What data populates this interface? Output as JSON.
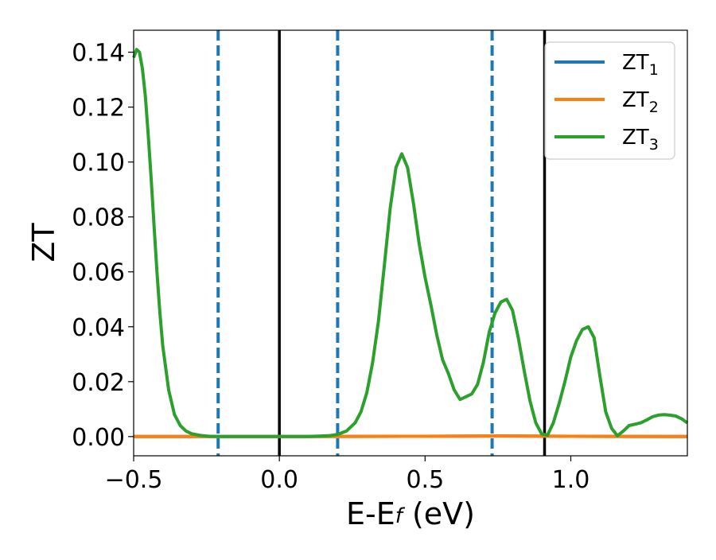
{
  "chart_data": {
    "type": "line",
    "title": "",
    "xlabel": {
      "main": "E-E",
      "sub": "f",
      "suffix": " (eV)"
    },
    "ylabel": "ZT",
    "xlim": [
      -0.5,
      1.4
    ],
    "ylim": [
      -0.007,
      0.148
    ],
    "x_ticks": [
      -0.5,
      0.0,
      0.5,
      1.0
    ],
    "x_tick_labels": [
      "−0.5",
      "0.0",
      "0.5",
      "1.0"
    ],
    "y_ticks": [
      0.0,
      0.02,
      0.04,
      0.06,
      0.08,
      0.1,
      0.12,
      0.14
    ],
    "y_tick_labels": [
      "0.00",
      "0.02",
      "0.04",
      "0.06",
      "0.08",
      "0.10",
      "0.12",
      "0.14"
    ],
    "grid": false,
    "legend_position": "top-right",
    "legend": [
      {
        "base": "ZT",
        "sub": "1",
        "color": "#1f77b4"
      },
      {
        "base": "ZT",
        "sub": "2",
        "color": "#ff7f0e"
      },
      {
        "base": "ZT",
        "sub": "3",
        "color": "#2ca02c"
      }
    ],
    "vlines": [
      {
        "x": -0.21,
        "style": "dashed",
        "color": "#1f77b4"
      },
      {
        "x": 0.0,
        "style": "solid",
        "color": "#000000"
      },
      {
        "x": 0.2,
        "style": "dashed",
        "color": "#1f77b4"
      },
      {
        "x": 0.73,
        "style": "dashed",
        "color": "#1f77b4"
      },
      {
        "x": 0.91,
        "style": "solid",
        "color": "#000000"
      }
    ],
    "series": [
      {
        "name": "ZT1",
        "color": "#1f77b4",
        "x": [
          -0.5,
          0.0,
          0.5,
          0.75,
          1.0,
          1.4
        ],
        "y": [
          0.0,
          0.0,
          0.0001,
          0.0002,
          0.0001,
          0.0
        ]
      },
      {
        "name": "ZT2",
        "color": "#ff7f0e",
        "x": [
          -0.5,
          0.0,
          0.5,
          0.75,
          1.0,
          1.4
        ],
        "y": [
          0.0,
          0.0,
          0.0001,
          0.0002,
          0.0001,
          0.0
        ]
      },
      {
        "name": "ZT3",
        "color": "#2ca02c",
        "x": [
          -0.5,
          -0.49,
          -0.48,
          -0.47,
          -0.46,
          -0.45,
          -0.44,
          -0.43,
          -0.42,
          -0.41,
          -0.4,
          -0.38,
          -0.36,
          -0.34,
          -0.32,
          -0.3,
          -0.27,
          -0.24,
          -0.2,
          -0.1,
          0.0,
          0.1,
          0.17,
          0.2,
          0.23,
          0.26,
          0.28,
          0.3,
          0.32,
          0.34,
          0.36,
          0.38,
          0.4,
          0.42,
          0.44,
          0.46,
          0.48,
          0.5,
          0.52,
          0.54,
          0.56,
          0.58,
          0.6,
          0.62,
          0.64,
          0.66,
          0.68,
          0.7,
          0.72,
          0.74,
          0.76,
          0.78,
          0.8,
          0.82,
          0.84,
          0.86,
          0.88,
          0.9,
          0.92,
          0.94,
          0.96,
          0.98,
          1.0,
          1.02,
          1.04,
          1.06,
          1.08,
          1.1,
          1.12,
          1.14,
          1.16,
          1.18,
          1.2,
          1.22,
          1.24,
          1.26,
          1.28,
          1.3,
          1.32,
          1.34,
          1.36,
          1.38,
          1.4
        ],
        "y": [
          0.138,
          0.141,
          0.14,
          0.134,
          0.124,
          0.11,
          0.094,
          0.077,
          0.06,
          0.045,
          0.033,
          0.017,
          0.008,
          0.004,
          0.002,
          0.001,
          0.0004,
          0.0001,
          0.0,
          0.0,
          0.0,
          0.0,
          0.0003,
          0.0008,
          0.002,
          0.005,
          0.009,
          0.016,
          0.027,
          0.042,
          0.062,
          0.083,
          0.098,
          0.103,
          0.098,
          0.085,
          0.07,
          0.058,
          0.048,
          0.037,
          0.028,
          0.023,
          0.017,
          0.0135,
          0.0145,
          0.0155,
          0.019,
          0.027,
          0.038,
          0.045,
          0.049,
          0.05,
          0.046,
          0.036,
          0.024,
          0.013,
          0.005,
          0.001,
          0.0005,
          0.005,
          0.012,
          0.02,
          0.029,
          0.035,
          0.039,
          0.04,
          0.036,
          0.022,
          0.009,
          0.003,
          0.0003,
          0.002,
          0.004,
          0.0045,
          0.005,
          0.006,
          0.0072,
          0.0078,
          0.008,
          0.0078,
          0.0075,
          0.0065,
          0.005
        ]
      }
    ]
  }
}
